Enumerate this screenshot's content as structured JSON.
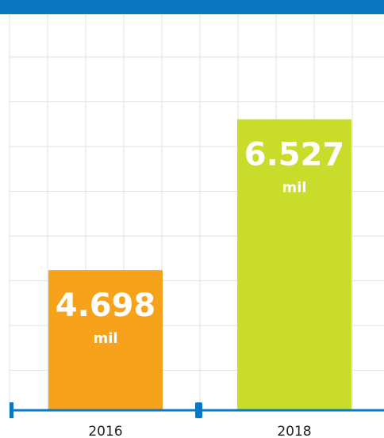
{
  "chart_data": {
    "type": "bar",
    "categories": [
      "2016",
      "2018"
    ],
    "values": [
      4698,
      6527
    ],
    "value_labels": [
      "4.698",
      "6.527"
    ],
    "unit": "mil",
    "colors": [
      "#f6a31b",
      "#c9dc2c"
    ],
    "ylim": [
      3000,
      7800
    ]
  }
}
